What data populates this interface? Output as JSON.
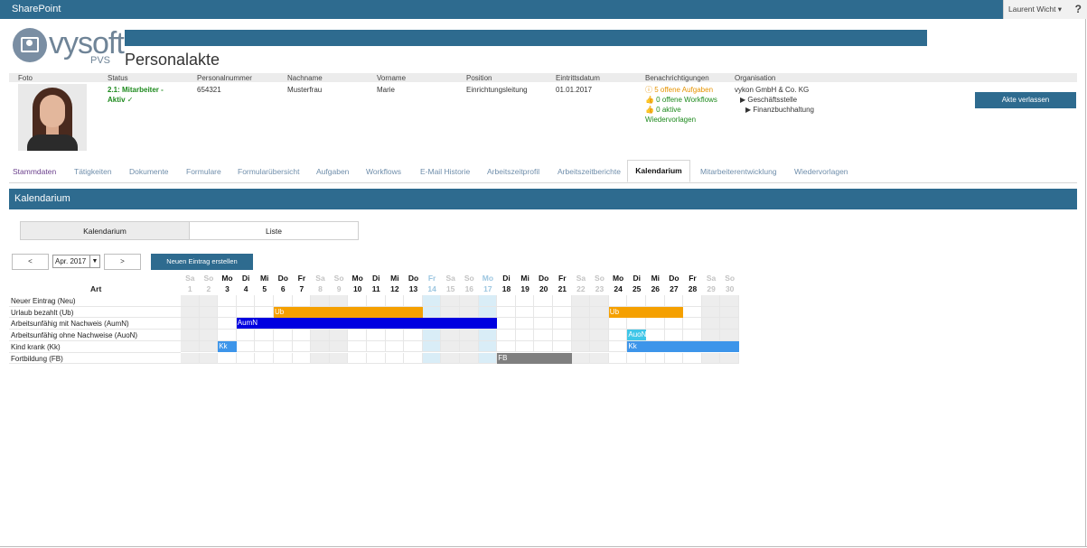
{
  "suitebar": {
    "brand": "SharePoint",
    "user": "Laurent Wicht ▾",
    "help": "?"
  },
  "logo": {
    "word": "vysoft",
    "sub": "PVS"
  },
  "page_title": "Personalakte",
  "profile": {
    "headers": [
      "Foto",
      "Status",
      "Personalnummer",
      "Nachname",
      "Vorname",
      "Position",
      "Eintrittsdatum",
      "Benachrichtigungen",
      "Organisation"
    ],
    "status_line1": "2.1: Mitarbeiter -",
    "status_line2": "Aktiv ✓",
    "personalnummer": "654321",
    "nachname": "Musterfrau",
    "vorname": "Marie",
    "position": "Einrichtungsleitung",
    "eintrittsdatum": "01.01.2017",
    "notifications": [
      "ⓘ 5 offene Aufgaben",
      "👍 0 offene Workflows",
      "👍 0 aktive",
      "Wiedervorlagen"
    ],
    "organisation": [
      "vykon GmbH & Co. KG",
      "▶ Geschäftsstelle",
      "▶ Finanzbuchhaltung"
    ],
    "leave_button": "Akte verlassen"
  },
  "tabs": [
    {
      "label": "Stammdaten"
    },
    {
      "label": "Tätigkeiten"
    },
    {
      "label": "Dokumente"
    },
    {
      "label": "Formulare"
    },
    {
      "label": "Formularübersicht"
    },
    {
      "label": "Aufgaben"
    },
    {
      "label": "Workflows"
    },
    {
      "label": "E-Mail Historie"
    },
    {
      "label": "Arbeitszeitprofil"
    },
    {
      "label": "Arbeitszeitberichte"
    },
    {
      "label": "Kalendarium"
    },
    {
      "label": "Mitarbeiterentwicklung"
    },
    {
      "label": "Wiedervorlagen"
    }
  ],
  "active_tab": "Kalendarium",
  "section_title": "Kalendarium",
  "view_toggle": {
    "calendar": "Kalendarium",
    "list": "Liste",
    "selected": "Kalendarium"
  },
  "nav": {
    "prev": "<",
    "month": "Apr. 2017",
    "next": ">",
    "new_entry": "Neuen Eintrag erstellen"
  },
  "calendar": {
    "art_header": "Art",
    "days": [
      {
        "d": "Sa",
        "n": "1",
        "t": "we"
      },
      {
        "d": "So",
        "n": "2",
        "t": "we"
      },
      {
        "d": "Mo",
        "n": "3",
        "t": "wd"
      },
      {
        "d": "Di",
        "n": "4",
        "t": "wd"
      },
      {
        "d": "Mi",
        "n": "5",
        "t": "wd"
      },
      {
        "d": "Do",
        "n": "6",
        "t": "wd"
      },
      {
        "d": "Fr",
        "n": "7",
        "t": "wd"
      },
      {
        "d": "Sa",
        "n": "8",
        "t": "we"
      },
      {
        "d": "So",
        "n": "9",
        "t": "we"
      },
      {
        "d": "Mo",
        "n": "10",
        "t": "wd"
      },
      {
        "d": "Di",
        "n": "11",
        "t": "wd"
      },
      {
        "d": "Mi",
        "n": "12",
        "t": "wd"
      },
      {
        "d": "Do",
        "n": "13",
        "t": "wd"
      },
      {
        "d": "Fr",
        "n": "14",
        "t": "hol"
      },
      {
        "d": "Sa",
        "n": "15",
        "t": "we"
      },
      {
        "d": "So",
        "n": "16",
        "t": "we"
      },
      {
        "d": "Mo",
        "n": "17",
        "t": "hol"
      },
      {
        "d": "Di",
        "n": "18",
        "t": "wd"
      },
      {
        "d": "Mi",
        "n": "19",
        "t": "wd"
      },
      {
        "d": "Do",
        "n": "20",
        "t": "wd"
      },
      {
        "d": "Fr",
        "n": "21",
        "t": "wd"
      },
      {
        "d": "Sa",
        "n": "22",
        "t": "we"
      },
      {
        "d": "So",
        "n": "23",
        "t": "we"
      },
      {
        "d": "Mo",
        "n": "24",
        "t": "wd"
      },
      {
        "d": "Di",
        "n": "25",
        "t": "wd"
      },
      {
        "d": "Mi",
        "n": "26",
        "t": "wd"
      },
      {
        "d": "Do",
        "n": "27",
        "t": "wd"
      },
      {
        "d": "Fr",
        "n": "28",
        "t": "wd"
      },
      {
        "d": "Sa",
        "n": "29",
        "t": "we"
      },
      {
        "d": "So",
        "n": "30",
        "t": "we"
      }
    ],
    "rows": [
      "Neuer Eintrag (Neu)",
      "Urlaub bezahlt (Ub)",
      "Arbeitsunfähig mit Nachweis (AumN)",
      "Arbeitsunfähig ohne Nachweise (AuoN)",
      "Kind krank (Kk)",
      "Fortbildung (FB)"
    ],
    "entries": [
      {
        "row": 1,
        "start": 6,
        "end": 13,
        "label": "Ub",
        "color": "#f5a000"
      },
      {
        "row": 1,
        "start": 24,
        "end": 27,
        "label": "Ub",
        "color": "#f5a000"
      },
      {
        "row": 2,
        "start": 4,
        "end": 17,
        "label": "AumN",
        "color": "#0000e0"
      },
      {
        "row": 3,
        "start": 25,
        "end": 25,
        "label": "AuoN",
        "color": "#3fc6e8"
      },
      {
        "row": 4,
        "start": 3,
        "end": 3,
        "label": "Kk",
        "color": "#3d95ea"
      },
      {
        "row": 4,
        "start": 25,
        "end": 30,
        "label": "Kk",
        "color": "#3d95ea"
      },
      {
        "row": 5,
        "start": 18,
        "end": 21,
        "label": "FB",
        "color": "#7f7f7f"
      }
    ]
  }
}
